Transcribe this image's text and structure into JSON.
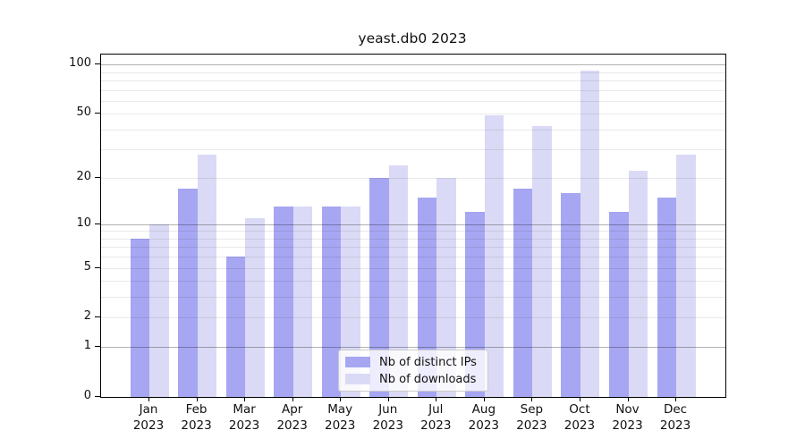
{
  "chart_data": {
    "type": "bar",
    "title": "yeast.db0 2023",
    "scale": "log1p",
    "categories": [
      "Jan",
      "Feb",
      "Mar",
      "Apr",
      "May",
      "Jun",
      "Jul",
      "Aug",
      "Sep",
      "Oct",
      "Nov",
      "Dec"
    ],
    "category_year": "2023",
    "series": [
      {
        "name": "Nb of distinct IPs",
        "color": "#a6a6f2",
        "values": [
          8,
          17,
          6,
          13,
          13,
          20,
          15,
          12,
          17,
          16,
          12,
          15
        ]
      },
      {
        "name": "Nb of downloads",
        "color": "#dadaf6",
        "values": [
          10,
          28,
          11,
          13,
          13,
          24,
          20,
          49,
          42,
          92,
          22,
          28
        ]
      }
    ],
    "ytick_labels": [
      "100",
      "50",
      "20",
      "10",
      "5",
      "2",
      "1",
      "0"
    ],
    "ytick_values": [
      100,
      50,
      20,
      10,
      5,
      2,
      1,
      0
    ],
    "minor_gridlines": [
      2,
      3,
      4,
      5,
      6,
      7,
      8,
      9,
      20,
      30,
      40,
      50,
      60,
      70,
      80,
      90
    ],
    "major_gridlines": [
      1,
      10,
      100
    ],
    "ylim": [
      0,
      115
    ],
    "grid": true,
    "legend_position": "lower-center-inside",
    "legend_entries": [
      "Nb of distinct IPs",
      "Nb of downloads"
    ]
  },
  "colors": {
    "background": "#ffffff",
    "spine": "#000000",
    "grid_minor": "#eaeaea",
    "grid_major": "#b3b3b3",
    "series_ips": "#a6a6f2",
    "series_downloads": "#dadaf6"
  }
}
